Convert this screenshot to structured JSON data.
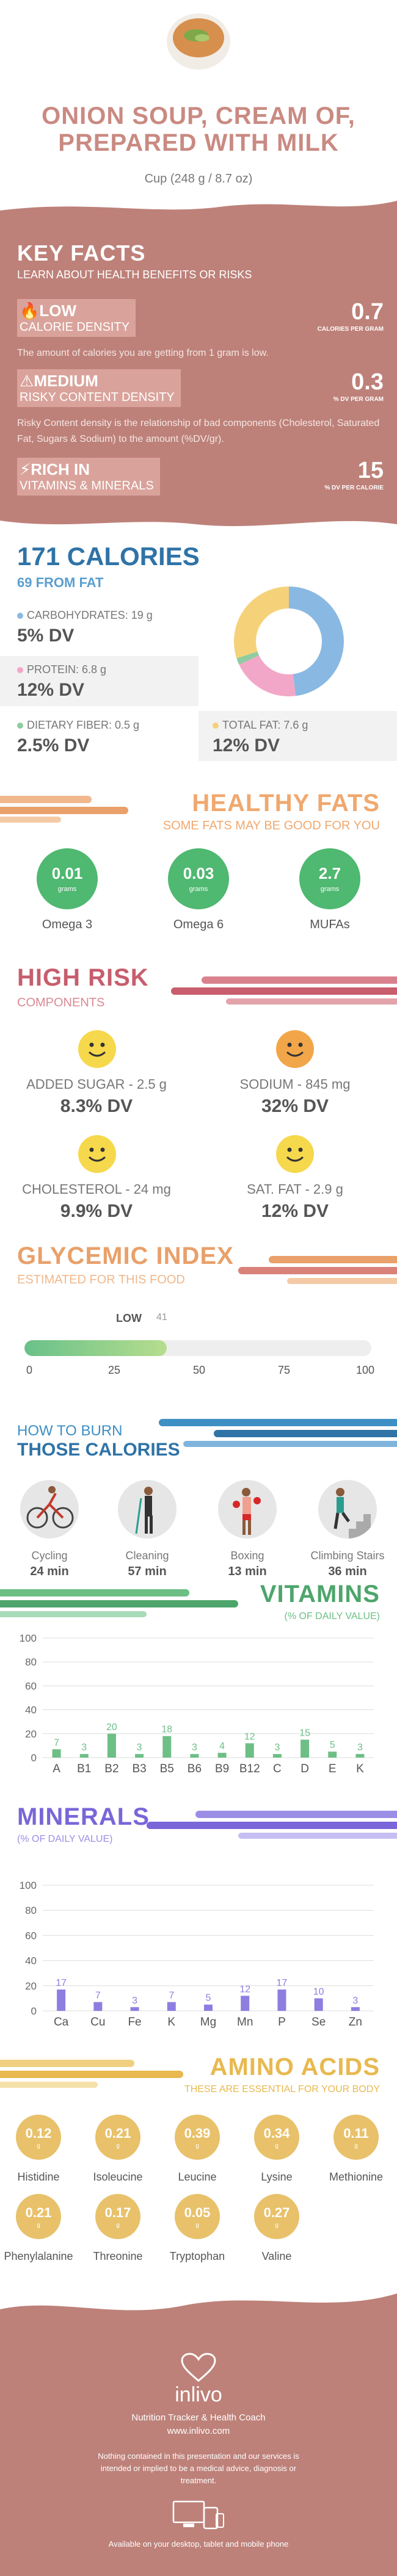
{
  "header": {
    "title_line1": "ONION SOUP, CREAM OF,",
    "title_line2": "PREPARED WITH MILK",
    "serving": "Cup (248 g / 8.7 oz)"
  },
  "key_facts": {
    "title": "KEY FACTS",
    "subtitle": "LEARN ABOUT HEALTH BENEFITS OR RISKS",
    "items": [
      {
        "level": "LOW",
        "name": "CALORIE DENSITY",
        "value": "0.7",
        "unit": "CALORIES PER GRAM",
        "desc": "The amount of calories you are getting from 1 gram is low."
      },
      {
        "level": "MEDIUM",
        "name": "RISKY CONTENT DENSITY",
        "value": "0.3",
        "unit": "% DV PER GRAM",
        "desc": "Risky Content density is the relationship of bad components (Cholesterol, Saturated Fat, Sugars & Sodium) to the amount (%DV/gr)."
      },
      {
        "level": "RICH  IN",
        "name": "VITAMINS & MINERALS",
        "value": "15",
        "unit": "% DV PER CALORIE",
        "desc": ""
      }
    ]
  },
  "calories": {
    "title": "171 CALORIES",
    "fat": "69 FROM FAT",
    "macros": [
      {
        "label": "CARBOHYDRATES: 19 g",
        "dv": "5% DV",
        "color": "#89b9e2",
        "pct": 48
      },
      {
        "label": "PROTEIN: 6.8 g",
        "dv": "12% DV",
        "color": "#f3a7c8",
        "pct": 20
      },
      {
        "label": "DIETARY FIBER: 0.5 g",
        "dv": "2.5% DV",
        "color": "#8fcca0",
        "pct": 2
      },
      {
        "label": "TOTAL FAT: 7.6 g",
        "dv": "12% DV",
        "color": "#f5d27a",
        "pct": 30
      }
    ]
  },
  "healthy_fats": {
    "title": "HEALTHY FATS",
    "subtitle": "SOME FATS MAY BE GOOD FOR YOU",
    "items": [
      {
        "value": "0.01",
        "unit": "grams",
        "label": "Omega 3"
      },
      {
        "value": "0.03",
        "unit": "grams",
        "label": "Omega 6"
      },
      {
        "value": "2.7",
        "unit": "grams",
        "label": "MUFAs"
      }
    ]
  },
  "high_risk": {
    "title": "HIGH RISK",
    "subtitle": "COMPONENTS",
    "items": [
      {
        "label": "ADDED SUGAR - 2.5 g",
        "dv": "8.3% DV",
        "color": "#f6d84c"
      },
      {
        "label": "SODIUM - 845 mg",
        "dv": "32% DV",
        "color": "#f2a64a"
      },
      {
        "label": "CHOLESTEROL - 24 mg",
        "dv": "9.9% DV",
        "color": "#f6d84c"
      },
      {
        "label": "SAT. FAT - 2.9 g",
        "dv": "12% DV",
        "color": "#f6d84c"
      }
    ]
  },
  "glycemic": {
    "title": "GLYCEMIC INDEX",
    "subtitle": "ESTIMATED FOR THIS FOOD",
    "level": "LOW",
    "value": "41",
    "fraction": 0.41,
    "ticks": [
      "0",
      "25",
      "50",
      "75",
      "100"
    ]
  },
  "burn": {
    "title1": "HOW TO BURN",
    "title2": "THOSE CALORIES",
    "items": [
      {
        "name": "Cycling",
        "minutes": "24 min"
      },
      {
        "name": "Cleaning",
        "minutes": "57 min"
      },
      {
        "name": "Boxing",
        "minutes": "13 min"
      },
      {
        "name": "Climbing Stairs",
        "minutes": "36 min"
      }
    ]
  },
  "vitamins": {
    "title": "VITAMINS",
    "subtitle": "(% OF DAILY VALUE)",
    "color": "#6dbf86",
    "chart_data": {
      "type": "bar",
      "categories": [
        "A",
        "B1",
        "B2",
        "B3",
        "B5",
        "B6",
        "B9",
        "B12",
        "C",
        "D",
        "E",
        "K"
      ],
      "values": [
        7,
        3,
        20,
        3,
        18,
        3,
        4,
        12,
        3,
        15,
        5,
        3
      ],
      "ylim": [
        0,
        100
      ],
      "yticks": [
        "0",
        "20",
        "40",
        "60",
        "80",
        "100"
      ]
    }
  },
  "minerals": {
    "title": "MINERALS",
    "subtitle": "(% OF DAILY VALUE)",
    "color": "#8e7ee0",
    "chart_data": {
      "type": "bar",
      "categories": [
        "Ca",
        "Cu",
        "Fe",
        "K",
        "Mg",
        "Mn",
        "P",
        "Se",
        "Zn"
      ],
      "values": [
        17,
        7,
        3,
        7,
        5,
        12,
        17,
        10,
        3
      ],
      "ylim": [
        0,
        100
      ],
      "yticks": [
        "0",
        "20",
        "40",
        "60",
        "80",
        "100"
      ]
    }
  },
  "amino": {
    "title": "AMINO ACIDS",
    "subtitle": "THESE ARE ESSENTIAL FOR YOUR BODY",
    "items": [
      {
        "value": "0.12",
        "unit": "g",
        "label": "Histidine"
      },
      {
        "value": "0.21",
        "unit": "g",
        "label": "Isoleucine"
      },
      {
        "value": "0.39",
        "unit": "g",
        "label": "Leucine"
      },
      {
        "value": "0.34",
        "unit": "g",
        "label": "Lysine"
      },
      {
        "value": "0.11",
        "unit": "g",
        "label": "Methionine"
      },
      {
        "value": "0.21",
        "unit": "g",
        "label": "Phenylalanine"
      },
      {
        "value": "0.17",
        "unit": "g",
        "label": "Threonine"
      },
      {
        "value": "0.05",
        "unit": "g",
        "label": "Tryptophan"
      },
      {
        "value": "0.27",
        "unit": "g",
        "label": "Valine"
      }
    ]
  },
  "footer": {
    "brand": "inlivo",
    "tagline": "Nutrition Tracker & Health Coach",
    "url": "www.inlivo.com",
    "disclaimer": "Nothing contained in this presentation and our services is intended or implied to be a medical advice, diagnosis or treatment.",
    "available": "Available on your desktop, tablet and mobile phone"
  }
}
